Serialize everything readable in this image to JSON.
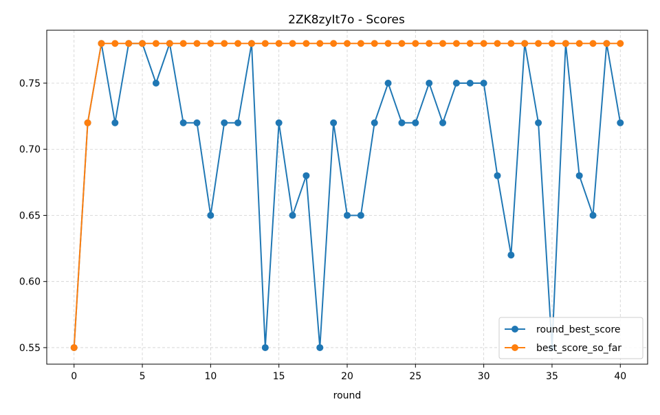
{
  "chart_data": {
    "type": "line",
    "title": "2ZK8zyIt7o - Scores",
    "xlabel": "round",
    "ylabel": "",
    "xlim": [
      -2,
      42
    ],
    "ylim": [
      0.5375,
      0.79
    ],
    "xticks": [
      0,
      5,
      10,
      15,
      20,
      25,
      30,
      35,
      40
    ],
    "yticks": [
      0.55,
      0.6,
      0.65,
      0.7,
      0.75
    ],
    "xtick_labels": [
      "0",
      "5",
      "10",
      "15",
      "20",
      "25",
      "30",
      "35",
      "40"
    ],
    "ytick_labels": [
      "0.55",
      "0.60",
      "0.65",
      "0.70",
      "0.75"
    ],
    "grid": true,
    "legend_position": "lower-right",
    "x": [
      0,
      1,
      2,
      3,
      4,
      5,
      6,
      7,
      8,
      9,
      10,
      11,
      12,
      13,
      14,
      15,
      16,
      17,
      18,
      19,
      20,
      21,
      22,
      23,
      24,
      25,
      26,
      27,
      28,
      29,
      30,
      31,
      32,
      33,
      34,
      35,
      36,
      37,
      38,
      39,
      40
    ],
    "series": [
      {
        "name": "round_best_score",
        "color": "#1f77b4",
        "values": [
          0.55,
          0.72,
          0.78,
          0.72,
          0.78,
          0.78,
          0.75,
          0.78,
          0.72,
          0.72,
          0.65,
          0.72,
          0.72,
          0.78,
          0.55,
          0.72,
          0.65,
          0.68,
          0.55,
          0.72,
          0.65,
          0.65,
          0.72,
          0.75,
          0.72,
          0.72,
          0.75,
          0.72,
          0.75,
          0.75,
          0.75,
          0.68,
          0.62,
          0.78,
          0.72,
          0.55,
          0.78,
          0.68,
          0.65,
          0.78,
          0.72
        ]
      },
      {
        "name": "best_score_so_far",
        "color": "#ff7f0e",
        "values": [
          0.55,
          0.72,
          0.78,
          0.78,
          0.78,
          0.78,
          0.78,
          0.78,
          0.78,
          0.78,
          0.78,
          0.78,
          0.78,
          0.78,
          0.78,
          0.78,
          0.78,
          0.78,
          0.78,
          0.78,
          0.78,
          0.78,
          0.78,
          0.78,
          0.78,
          0.78,
          0.78,
          0.78,
          0.78,
          0.78,
          0.78,
          0.78,
          0.78,
          0.78,
          0.78,
          0.78,
          0.78,
          0.78,
          0.78,
          0.78,
          0.78
        ]
      }
    ]
  }
}
